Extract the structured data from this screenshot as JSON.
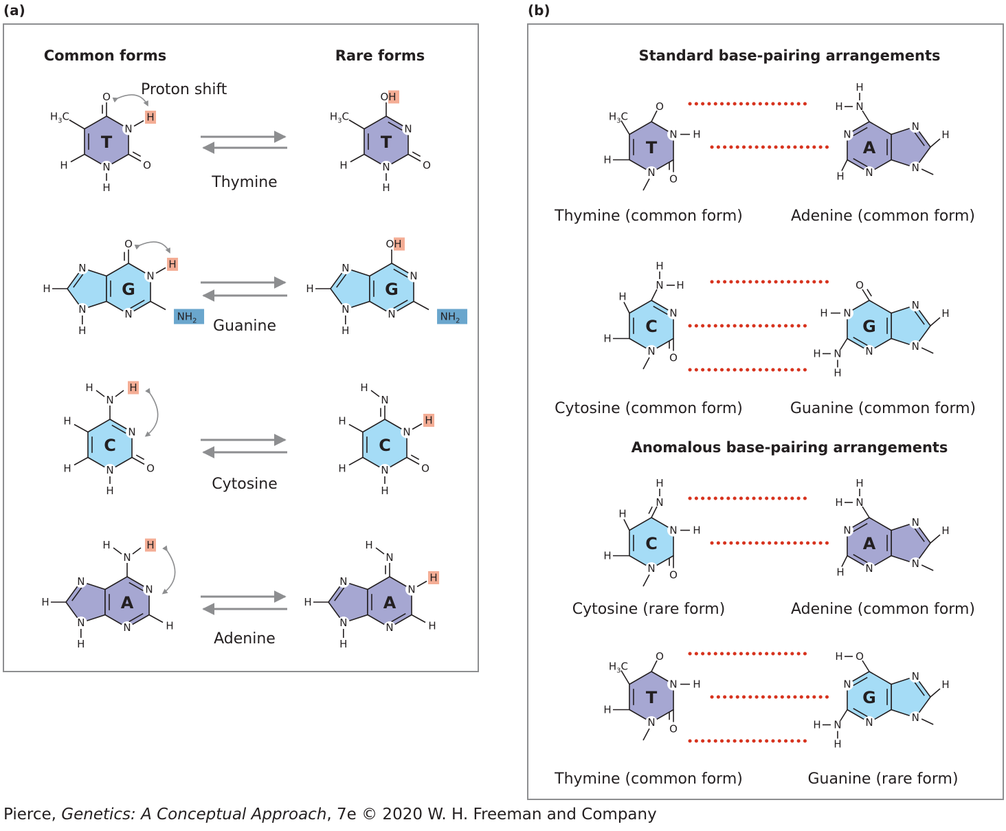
{
  "colors": {
    "purine_pyrimidine_common_purple": "#a6a7d2",
    "light_blue": "#a5dcf6",
    "rare_hydrogen_highlight": "#f4ad95",
    "amino_highlight": "#6aa6cd",
    "hydrogen_bond": "#d7331e",
    "arrow_gray": "#8d8e90"
  },
  "panel_a": {
    "label": "(a)",
    "col_common": "Common forms",
    "col_rare": "Rare forms",
    "proton_shift": "Proton shift",
    "bases": [
      "Thymine",
      "Guanine",
      "Cytosine",
      "Adenine"
    ]
  },
  "panel_b": {
    "label": "(b)",
    "standard_title": "Standard base-pairing arrangements",
    "anomalous_title": "Anomalous base-pairing arrangements",
    "pairs": [
      {
        "left": "Thymine (common form)",
        "right": "Adenine (common form)"
      },
      {
        "left": "Cytosine (common form)",
        "right": "Guanine (common form)"
      },
      {
        "left": "Cytosine (rare form)",
        "right": "Adenine (common form)"
      },
      {
        "left": "Thymine (common form)",
        "right": "Guanine (rare form)"
      }
    ]
  },
  "ring_letters": {
    "T": "T",
    "G": "G",
    "C": "C",
    "A": "A"
  },
  "atoms": {
    "O": "O",
    "N": "N",
    "H": "H",
    "OH": "OH",
    "NH2": "NH",
    "NH2_sub": "2",
    "H3C": "H",
    "H3C_sub": "3",
    "H3C_C": "C"
  },
  "credit": {
    "author": "Pierce, ",
    "title": "Genetics: A Conceptual Approach",
    "rest": ", 7e © 2020 W. H. Freeman and Company"
  }
}
